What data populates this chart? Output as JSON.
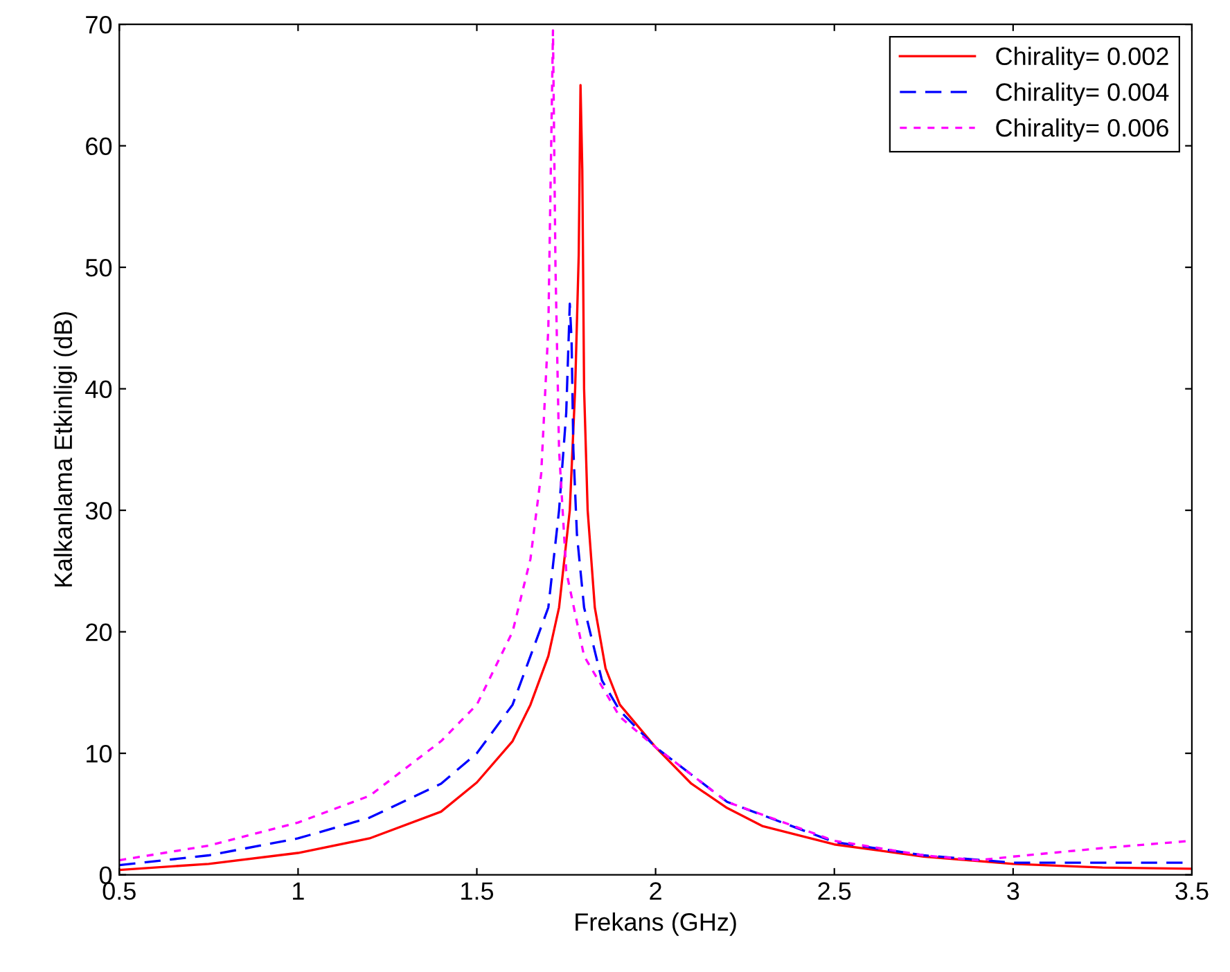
{
  "chart_data": {
    "type": "line",
    "xlabel": "Frekans (GHz)",
    "ylabel": "Kalkanlama Etkinligi (dB)",
    "xlim": [
      0.5,
      3.5
    ],
    "ylim": [
      0,
      70
    ],
    "xticks": [
      0.5,
      1,
      1.5,
      2,
      2.5,
      3,
      3.5
    ],
    "yticks": [
      0,
      10,
      20,
      30,
      40,
      50,
      60,
      70
    ],
    "grid": false,
    "legend": "top right",
    "series": [
      {
        "name": "Chirality= 0.002",
        "color": "#ff0000",
        "line_style": "solid",
        "x": [
          0.5,
          0.75,
          1.0,
          1.2,
          1.4,
          1.5,
          1.6,
          1.65,
          1.7,
          1.73,
          1.76,
          1.775,
          1.785,
          1.79,
          1.795,
          1.8,
          1.81,
          1.83,
          1.86,
          1.9,
          2.0,
          2.1,
          2.2,
          2.3,
          2.5,
          2.75,
          3.0,
          3.25,
          3.5
        ],
        "values": [
          0.4,
          0.9,
          1.8,
          3.0,
          5.2,
          7.6,
          11,
          14,
          18,
          22,
          30,
          40,
          51,
          65,
          58,
          40,
          30,
          22,
          17,
          14,
          10.5,
          7.5,
          5.5,
          4,
          2.5,
          1.5,
          0.9,
          0.6,
          0.5
        ]
      },
      {
        "name": "Chirality= 0.004",
        "color": "#0000ff",
        "line_style": "dashed",
        "x": [
          0.5,
          0.75,
          1.0,
          1.2,
          1.4,
          1.5,
          1.6,
          1.7,
          1.73,
          1.75,
          1.76,
          1.765,
          1.77,
          1.78,
          1.8,
          1.85,
          1.9,
          2.0,
          2.2,
          2.5,
          2.75,
          3.0,
          3.5
        ],
        "values": [
          0.8,
          1.6,
          3.0,
          4.7,
          7.5,
          10,
          14,
          22,
          30,
          38,
          47,
          44,
          35,
          28,
          22,
          16,
          13.5,
          10.5,
          6,
          2.7,
          1.6,
          1.0,
          1.0
        ]
      },
      {
        "name": "Chirality= 0.006",
        "color": "#ff00ff",
        "line_style": "dotted",
        "x": [
          0.5,
          0.75,
          1.0,
          1.2,
          1.4,
          1.5,
          1.6,
          1.65,
          1.68,
          1.7,
          1.713,
          1.72,
          1.73,
          1.75,
          1.8,
          1.9,
          2.0,
          2.2,
          2.5,
          2.75,
          2.9,
          3.0,
          3.25,
          3.5
        ],
        "values": [
          1.2,
          2.4,
          4.3,
          6.5,
          11,
          14,
          20,
          26,
          33,
          45,
          69.5,
          50,
          35,
          25,
          18,
          13,
          10.5,
          6,
          2.8,
          1.6,
          1.2,
          1.5,
          2.2,
          2.8
        ]
      }
    ]
  }
}
